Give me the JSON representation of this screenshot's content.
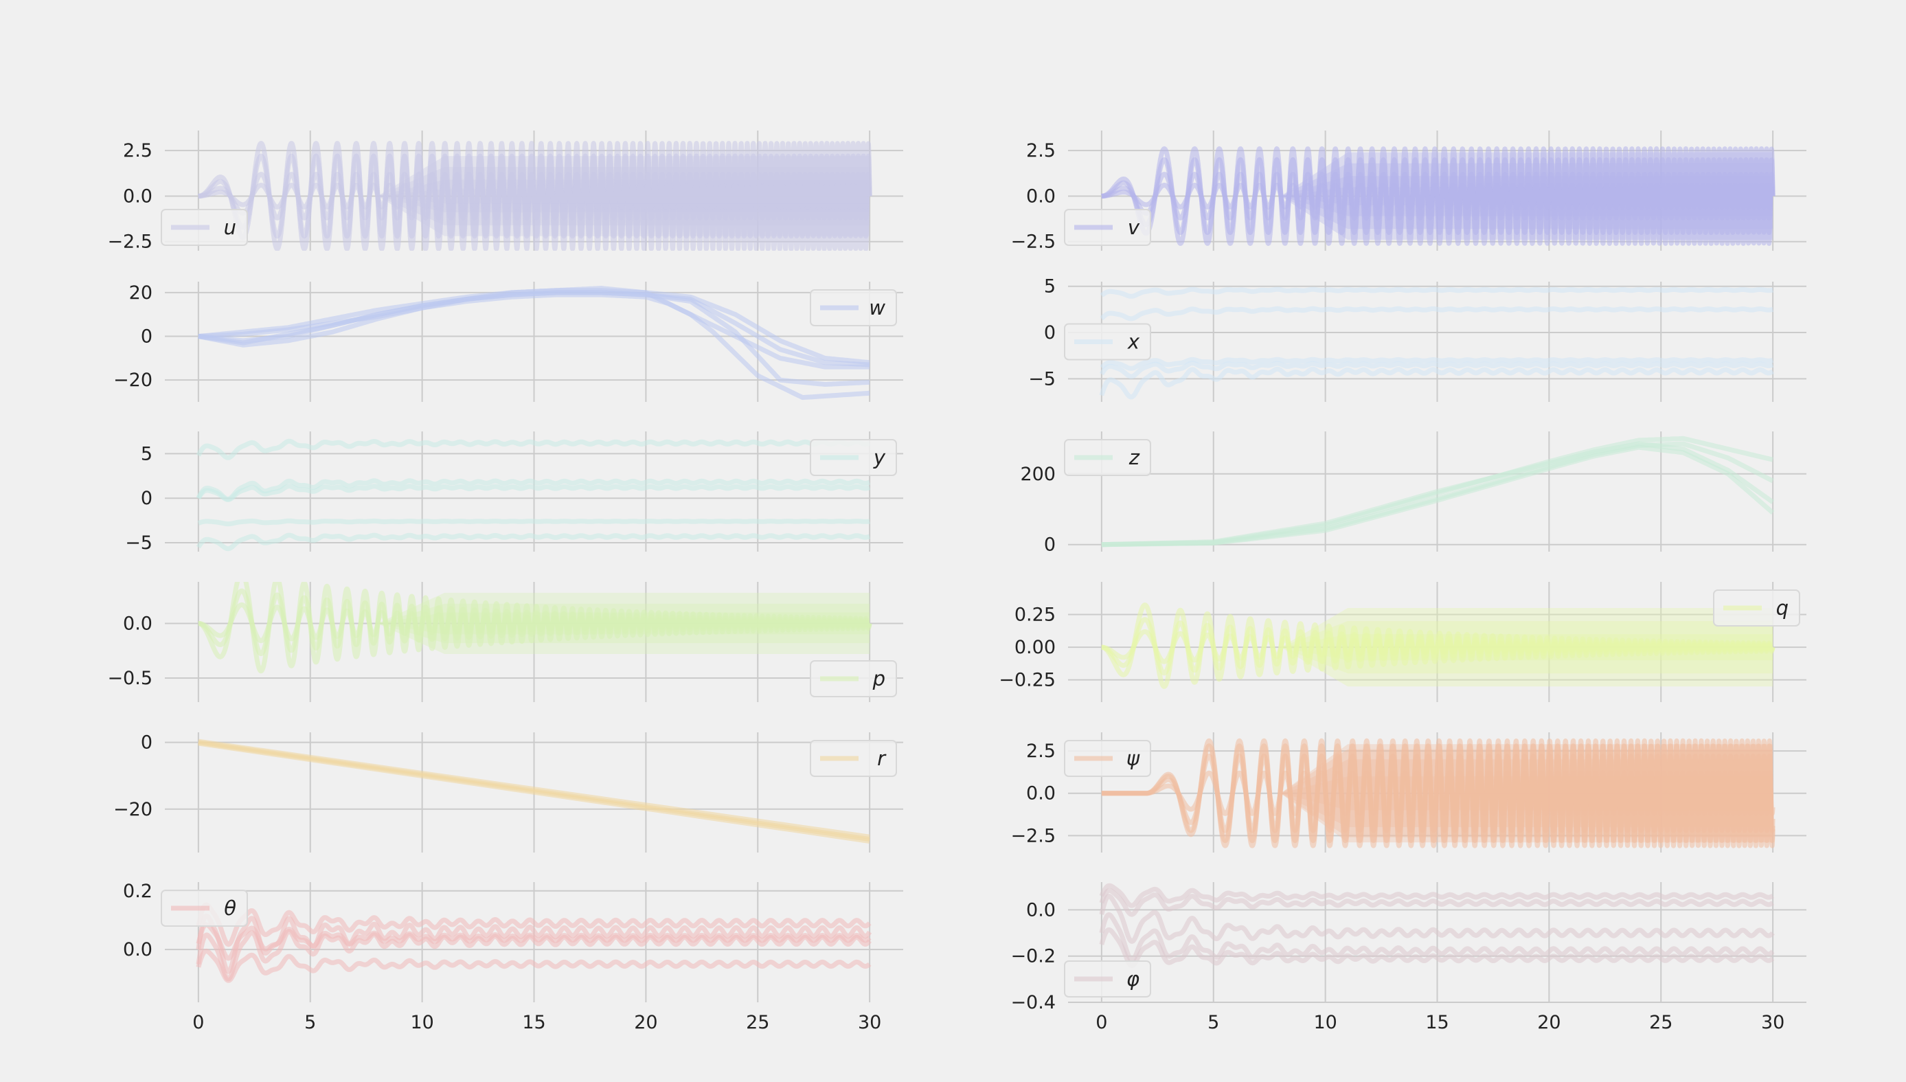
{
  "chart_data": [
    {
      "type": "line",
      "legend": "u",
      "legend_position": "lower-left",
      "color": "#c8c8e6",
      "xlim": [
        -1.5,
        31.5
      ],
      "ylim": [
        -3.0,
        3.6
      ],
      "xticks": [
        0,
        5,
        10,
        15,
        20,
        25,
        30
      ],
      "xtick_labels": [
        "",
        "",
        "",
        "",
        "",
        "",
        ""
      ],
      "yticks": [
        2.5,
        0.0,
        -2.5
      ],
      "ytick_labels": [
        "2.5",
        "0.0",
        "−2.5"
      ],
      "grid": true,
      "series": [
        {
          "kind": "chirp",
          "start": 0,
          "amp": 2.9,
          "band": 2.2
        },
        {
          "kind": "chirp",
          "start": 0,
          "amp": 2.2,
          "band": 1.6
        },
        {
          "kind": "chirp",
          "start": 0,
          "amp": 1.2,
          "band": 0.9
        },
        {
          "kind": "chirp",
          "start": 0,
          "amp": 0.6,
          "band": 0.4
        }
      ]
    },
    {
      "type": "line",
      "legend": "v",
      "legend_position": "lower-left",
      "color": "#b4b4eb",
      "xlim": [
        -1.5,
        31.5
      ],
      "ylim": [
        -3.0,
        3.6
      ],
      "xticks": [
        0,
        5,
        10,
        15,
        20,
        25,
        30
      ],
      "xtick_labels": [
        "",
        "",
        "",
        "",
        "",
        "",
        ""
      ],
      "yticks": [
        2.5,
        0.0,
        -2.5
      ],
      "ytick_labels": [
        "2.5",
        "0.0",
        "−2.5"
      ],
      "grid": true,
      "series": [
        {
          "kind": "chirp",
          "start": 0,
          "amp": 2.6,
          "band": 2.4
        },
        {
          "kind": "chirp",
          "start": 0,
          "amp": 2.0,
          "band": 1.8
        },
        {
          "kind": "chirp",
          "start": 0,
          "amp": 1.2,
          "band": 1.1
        },
        {
          "kind": "chirp",
          "start": 0,
          "amp": 0.6,
          "band": 0.5
        }
      ]
    },
    {
      "type": "line",
      "legend": "w",
      "legend_position": "upper-right",
      "color": "#bcc8f0",
      "xlim": [
        -1.5,
        31.5
      ],
      "ylim": [
        -30,
        25
      ],
      "xticks": [
        0,
        5,
        10,
        15,
        20,
        25,
        30
      ],
      "xtick_labels": [
        "",
        "",
        "",
        "",
        "",
        "",
        ""
      ],
      "yticks": [
        20,
        0,
        -20
      ],
      "ytick_labels": [
        "20",
        "0",
        "−20"
      ],
      "grid": true,
      "series": [
        {
          "x": [
            0,
            2,
            4,
            6,
            8,
            10,
            12,
            14,
            16,
            18,
            20,
            21,
            22,
            24,
            26,
            28,
            30
          ],
          "y": [
            0,
            1,
            3,
            6,
            9,
            13,
            16,
            18,
            19,
            19,
            18,
            15,
            10,
            0,
            -10,
            -14,
            -14
          ]
        },
        {
          "x": [
            0,
            2,
            4,
            6,
            8,
            10,
            12,
            14,
            16,
            18,
            20,
            22,
            24,
            26,
            28,
            30
          ],
          "y": [
            0,
            -3,
            1,
            5,
            10,
            14,
            17,
            19,
            20,
            20,
            19,
            17,
            6,
            -6,
            -12,
            -13
          ]
        },
        {
          "x": [
            0,
            2,
            4,
            6,
            8,
            10,
            12,
            14,
            16,
            18,
            20,
            22,
            24,
            26,
            28,
            30
          ],
          "y": [
            0,
            -4,
            -2,
            2,
            8,
            13,
            17,
            20,
            21,
            21,
            20,
            18,
            10,
            -2,
            -10,
            -12
          ]
        },
        {
          "x": [
            0,
            2,
            4,
            6,
            8,
            10,
            12,
            14,
            16,
            18,
            20,
            22,
            23,
            25,
            27,
            30
          ],
          "y": [
            0,
            2,
            4,
            8,
            12,
            15,
            18,
            20,
            21,
            22,
            20,
            10,
            2,
            -18,
            -28,
            -26
          ]
        },
        {
          "x": [
            0,
            2,
            4,
            6,
            8,
            10,
            12,
            14,
            16,
            18,
            20,
            22,
            24,
            26,
            28,
            30
          ],
          "y": [
            0,
            -2,
            0,
            5,
            10,
            14,
            17,
            19,
            20,
            20,
            19,
            16,
            2,
            -20,
            -22,
            -21
          ]
        }
      ]
    },
    {
      "type": "line",
      "legend": "x",
      "legend_position": "center-left",
      "color": "#d2e6f5",
      "xlim": [
        -1.5,
        31.5
      ],
      "ylim": [
        -7.5,
        5.5
      ],
      "xticks": [
        0,
        5,
        10,
        15,
        20,
        25,
        30
      ],
      "xtick_labels": [
        "",
        "",
        "",
        "",
        "",
        "",
        ""
      ],
      "yticks": [
        5,
        0,
        -5
      ],
      "ytick_labels": [
        "5",
        "0",
        "−5"
      ],
      "grid": true,
      "series": [
        {
          "kind": "settle",
          "start": 4.0,
          "end": 4.6,
          "osc": 0.4
        },
        {
          "kind": "settle",
          "start": 1.5,
          "end": 2.5,
          "osc": 0.5
        },
        {
          "kind": "settle",
          "start": -4.5,
          "end": -3.5,
          "osc": 0.8
        },
        {
          "kind": "settle",
          "start": -6.8,
          "end": -4.2,
          "osc": 1.5
        },
        {
          "kind": "settle",
          "start": -3.8,
          "end": -3.0,
          "osc": 0.5
        }
      ]
    },
    {
      "type": "line",
      "legend": "y",
      "legend_position": "upper-right",
      "color": "#c8ebe6",
      "xlim": [
        -1.5,
        31.5
      ],
      "ylim": [
        -6.0,
        7.5
      ],
      "xticks": [
        0,
        5,
        10,
        15,
        20,
        25,
        30
      ],
      "xtick_labels": [
        "",
        "",
        "",
        "",
        "",
        "",
        ""
      ],
      "yticks": [
        5,
        0,
        -5
      ],
      "ytick_labels": [
        "5",
        "0",
        "−5"
      ],
      "grid": true,
      "series": [
        {
          "kind": "settle",
          "start": 4.8,
          "end": 6.2,
          "osc": 1.0
        },
        {
          "kind": "settle",
          "start": 0.0,
          "end": 1.2,
          "osc": 0.8
        },
        {
          "kind": "settle",
          "start": 0.0,
          "end": 1.8,
          "osc": 1.0
        },
        {
          "kind": "settle",
          "start": -2.8,
          "end": -2.6,
          "osc": 0.2
        },
        {
          "kind": "settle",
          "start": -5.5,
          "end": -4.3,
          "osc": 0.8
        }
      ]
    },
    {
      "type": "line",
      "legend": "z",
      "legend_position": "upper-left",
      "color": "#c8ebd7",
      "xlim": [
        -1.5,
        31.5
      ],
      "ylim": [
        -20,
        320
      ],
      "xticks": [
        0,
        5,
        10,
        15,
        20,
        25,
        30
      ],
      "xtick_labels": [
        "",
        "",
        "",
        "",
        "",
        "",
        ""
      ],
      "yticks": [
        200,
        0
      ],
      "ytick_labels": [
        "200",
        "0"
      ],
      "grid": true,
      "series": [
        {
          "x": [
            0,
            5,
            10,
            15,
            20,
            22,
            24,
            26,
            28,
            30
          ],
          "y": [
            0,
            8,
            60,
            150,
            230,
            262,
            285,
            270,
            210,
            120
          ]
        },
        {
          "x": [
            0,
            5,
            10,
            15,
            20,
            22,
            24,
            26,
            28,
            30
          ],
          "y": [
            0,
            6,
            55,
            145,
            235,
            268,
            295,
            300,
            270,
            240
          ]
        },
        {
          "x": [
            0,
            5,
            10,
            15,
            20,
            22,
            24,
            26,
            28,
            30
          ],
          "y": [
            0,
            5,
            45,
            130,
            220,
            255,
            280,
            285,
            245,
            180
          ]
        },
        {
          "x": [
            0,
            5,
            10,
            15,
            20,
            22,
            24,
            26,
            28,
            30
          ],
          "y": [
            0,
            4,
            40,
            125,
            215,
            250,
            275,
            260,
            200,
            90
          ]
        }
      ]
    },
    {
      "type": "line",
      "legend": "p",
      "legend_position": "lower-right",
      "color": "#d7f0b4",
      "xlim": [
        -1.5,
        31.5
      ],
      "ylim": [
        -0.72,
        0.38
      ],
      "xticks": [
        0,
        5,
        10,
        15,
        20,
        25,
        30
      ],
      "xtick_labels": [
        "",
        "",
        "",
        "",
        "",
        "",
        ""
      ],
      "yticks": [
        0.0,
        -0.5
      ],
      "ytick_labels": [
        "0.0",
        "−0.5"
      ],
      "grid": true,
      "series": [
        {
          "kind": "decay",
          "amp": 0.55,
          "band": 0.28
        },
        {
          "kind": "decay",
          "amp": 0.35,
          "band": 0.18
        },
        {
          "kind": "decay",
          "amp": 0.2,
          "band": 0.1
        }
      ]
    },
    {
      "type": "line",
      "legend": "q",
      "legend_position": "upper-right",
      "color": "#e6f5a8",
      "xlim": [
        -1.5,
        31.5
      ],
      "ylim": [
        -0.42,
        0.5
      ],
      "xticks": [
        0,
        5,
        10,
        15,
        20,
        25,
        30
      ],
      "xtick_labels": [
        "",
        "",
        "",
        "",
        "",
        "",
        ""
      ],
      "yticks": [
        0.25,
        0.0,
        -0.25
      ],
      "ytick_labels": [
        "0.25",
        "0.00",
        "−0.25"
      ],
      "grid": true,
      "series": [
        {
          "kind": "decay",
          "amp": 0.38,
          "band": 0.3
        },
        {
          "kind": "decay",
          "amp": 0.25,
          "band": 0.2
        },
        {
          "kind": "decay",
          "amp": 0.14,
          "band": 0.1
        }
      ]
    },
    {
      "type": "line",
      "legend": "r",
      "legend_position": "upper-right",
      "color": "#f0d7a0",
      "xlim": [
        -1.5,
        31.5
      ],
      "ylim": [
        -33,
        3
      ],
      "xticks": [
        0,
        5,
        10,
        15,
        20,
        25,
        30
      ],
      "xtick_labels": [
        "",
        "",
        "",
        "",
        "",
        "",
        ""
      ],
      "yticks": [
        0,
        -20
      ],
      "ytick_labels": [
        "0",
        "−20"
      ],
      "grid": true,
      "series": [
        {
          "x": [
            0,
            30
          ],
          "y": [
            0,
            -29
          ]
        },
        {
          "x": [
            0,
            30
          ],
          "y": [
            0.3,
            -28.3
          ]
        },
        {
          "x": [
            0,
            30
          ],
          "y": [
            -0.3,
            -29.6
          ]
        }
      ]
    },
    {
      "type": "line",
      "legend": "ψ",
      "legend_position": "upper-left",
      "color": "#f0bea0",
      "xlim": [
        -1.5,
        31.5
      ],
      "ylim": [
        -3.5,
        3.6
      ],
      "xticks": [
        0,
        5,
        10,
        15,
        20,
        25,
        30
      ],
      "xtick_labels": [
        "",
        "",
        "",
        "",
        "",
        "",
        ""
      ],
      "yticks": [
        2.5,
        0.0,
        -2.5
      ],
      "ytick_labels": [
        "2.5",
        "0.0",
        "−2.5"
      ],
      "grid": true,
      "series": [
        {
          "kind": "chirp",
          "start": 2,
          "amp": 3.1,
          "band": 2.9
        },
        {
          "kind": "chirp",
          "start": 2,
          "amp": 2.8,
          "band": 2.6
        },
        {
          "kind": "chirp",
          "start": 2,
          "amp": 2.2,
          "band": 2.0
        },
        {
          "kind": "chirp",
          "start": 2,
          "amp": 1.2,
          "band": 1.0
        }
      ]
    },
    {
      "type": "line",
      "legend": "θ",
      "legend_position": "upper-left",
      "color": "#f0b9b9",
      "xlim": [
        -1.5,
        31.5
      ],
      "ylim": [
        -0.18,
        0.23
      ],
      "xticks": [
        0,
        5,
        10,
        15,
        20,
        25,
        30
      ],
      "xtick_labels": [
        "0",
        "5",
        "10",
        "15",
        "20",
        "25",
        "30"
      ],
      "yticks": [
        0.2,
        0.0
      ],
      "ytick_labels": [
        "0.2",
        "0.0"
      ],
      "grid": true,
      "series": [
        {
          "kind": "settle",
          "start": 0.08,
          "end": 0.09,
          "osc": 0.08
        },
        {
          "kind": "settle",
          "start": 0.0,
          "end": 0.06,
          "osc": 0.12
        },
        {
          "kind": "settle",
          "start": -0.05,
          "end": 0.03,
          "osc": 0.1
        },
        {
          "kind": "settle",
          "start": -0.06,
          "end": -0.05,
          "osc": 0.06
        },
        {
          "kind": "settle",
          "start": 0.02,
          "end": 0.04,
          "osc": 0.07
        }
      ]
    },
    {
      "type": "line",
      "legend": "φ",
      "legend_position": "lower-left",
      "color": "#dcc8cd",
      "xlim": [
        -1.5,
        31.5
      ],
      "ylim": [
        -0.4,
        0.12
      ],
      "xticks": [
        0,
        5,
        10,
        15,
        20,
        25,
        30
      ],
      "xtick_labels": [
        "0",
        "5",
        "10",
        "15",
        "20",
        "25",
        "30"
      ],
      "yticks": [
        0.0,
        -0.2,
        -0.4
      ],
      "ytick_labels": [
        "0.0",
        "−0.2",
        "−0.4"
      ],
      "grid": true,
      "series": [
        {
          "kind": "settle",
          "start": 0.06,
          "end": 0.06,
          "osc": 0.05
        },
        {
          "kind": "settle",
          "start": 0.03,
          "end": 0.03,
          "osc": 0.06
        },
        {
          "kind": "settle",
          "start": -0.02,
          "end": -0.1,
          "osc": 0.1
        },
        {
          "kind": "settle",
          "start": -0.1,
          "end": -0.18,
          "osc": 0.1
        },
        {
          "kind": "settle",
          "start": -0.15,
          "end": -0.21,
          "osc": 0.08
        }
      ]
    }
  ]
}
